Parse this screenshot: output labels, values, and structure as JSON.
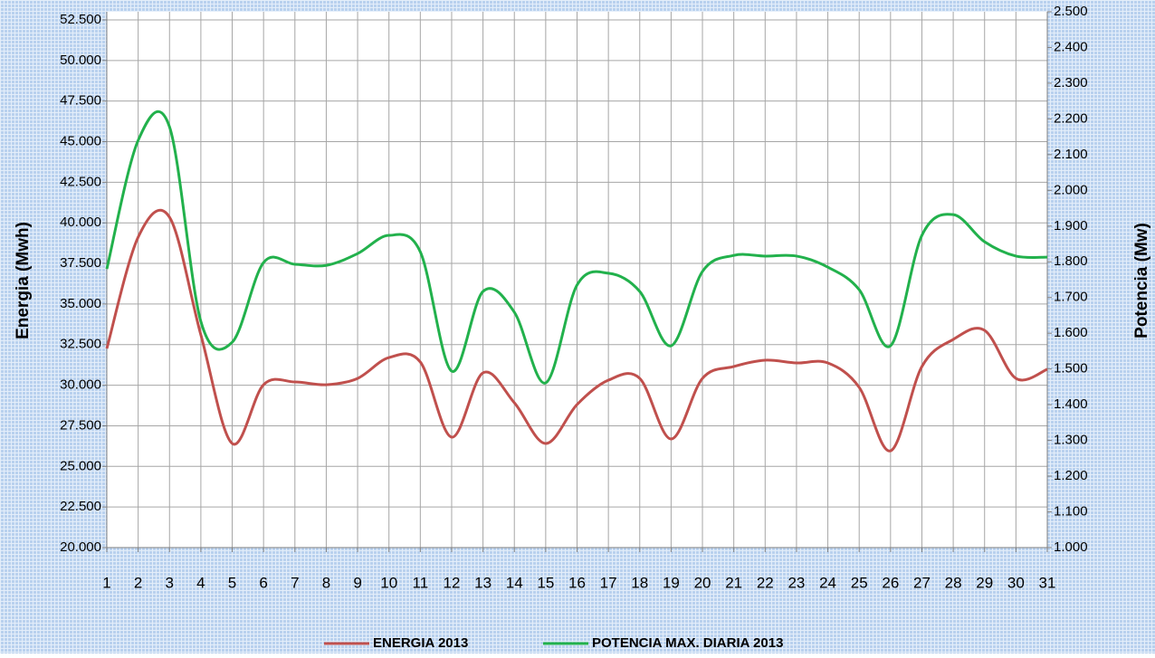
{
  "chart_data": {
    "type": "line",
    "categories": [
      "1",
      "2",
      "3",
      "4",
      "5",
      "6",
      "7",
      "8",
      "9",
      "10",
      "11",
      "12",
      "13",
      "14",
      "15",
      "16",
      "17",
      "18",
      "19",
      "20",
      "21",
      "22",
      "23",
      "24",
      "25",
      "26",
      "27",
      "28",
      "29",
      "30",
      "31"
    ],
    "ylabel": "Energia (Mwh)",
    "y2label": "Potencia (Mw)",
    "ylim": [
      20000,
      53000
    ],
    "yticks": [
      {
        "value": 20000,
        "label": "20.000"
      },
      {
        "value": 22500,
        "label": "22.500"
      },
      {
        "value": 25000,
        "label": "25.000"
      },
      {
        "value": 27500,
        "label": "27.500"
      },
      {
        "value": 30000,
        "label": "30.000"
      },
      {
        "value": 32500,
        "label": "32.500"
      },
      {
        "value": 35000,
        "label": "35.000"
      },
      {
        "value": 37500,
        "label": "37.500"
      },
      {
        "value": 40000,
        "label": "40.000"
      },
      {
        "value": 42500,
        "label": "42.500"
      },
      {
        "value": 45000,
        "label": "45.000"
      },
      {
        "value": 47500,
        "label": "47.500"
      },
      {
        "value": 50000,
        "label": "50.000"
      },
      {
        "value": 52500,
        "label": "52.500"
      }
    ],
    "y2lim": [
      1000,
      2500
    ],
    "y2ticks": [
      {
        "value": 1000,
        "label": "1.000"
      },
      {
        "value": 1100,
        "label": "1.100"
      },
      {
        "value": 1200,
        "label": "1.200"
      },
      {
        "value": 1300,
        "label": "1.300"
      },
      {
        "value": 1400,
        "label": "1.400"
      },
      {
        "value": 1500,
        "label": "1.500"
      },
      {
        "value": 1600,
        "label": "1.600"
      },
      {
        "value": 1700,
        "label": "1.700"
      },
      {
        "value": 1800,
        "label": "1.800"
      },
      {
        "value": 1900,
        "label": "1.900"
      },
      {
        "value": 2000,
        "label": "2.000"
      },
      {
        "value": 2100,
        "label": "2.100"
      },
      {
        "value": 2200,
        "label": "2.200"
      },
      {
        "value": 2300,
        "label": "2.300"
      },
      {
        "value": 2400,
        "label": "2.400"
      },
      {
        "value": 2500,
        "label": "2.500"
      }
    ],
    "grid": true,
    "legend": "bottom",
    "series": [
      {
        "name": "ENERGIA 2013",
        "color": "#c0504d",
        "values": [
          32260,
          39120,
          40350,
          33100,
          26410,
          30030,
          30200,
          30030,
          30420,
          31700,
          31430,
          26800,
          30760,
          28920,
          26410,
          28810,
          30310,
          30420,
          26690,
          30420,
          31150,
          31540,
          31370,
          31370,
          29870,
          25960,
          31150,
          32820,
          33380,
          30420,
          30980
        ]
      },
      {
        "name": "POTENCIA MAX. DIARIA 2013",
        "color": "#22b14c",
        "axis": "y2",
        "values": [
          1780,
          2140,
          2178,
          1633,
          1575,
          1798,
          1793,
          1790,
          1823,
          1874,
          1828,
          1494,
          1717,
          1659,
          1461,
          1735,
          1768,
          1717,
          1565,
          1773,
          1818,
          1816,
          1816,
          1785,
          1722,
          1565,
          1874,
          1932,
          1856,
          1816,
          1813
        ]
      }
    ]
  }
}
